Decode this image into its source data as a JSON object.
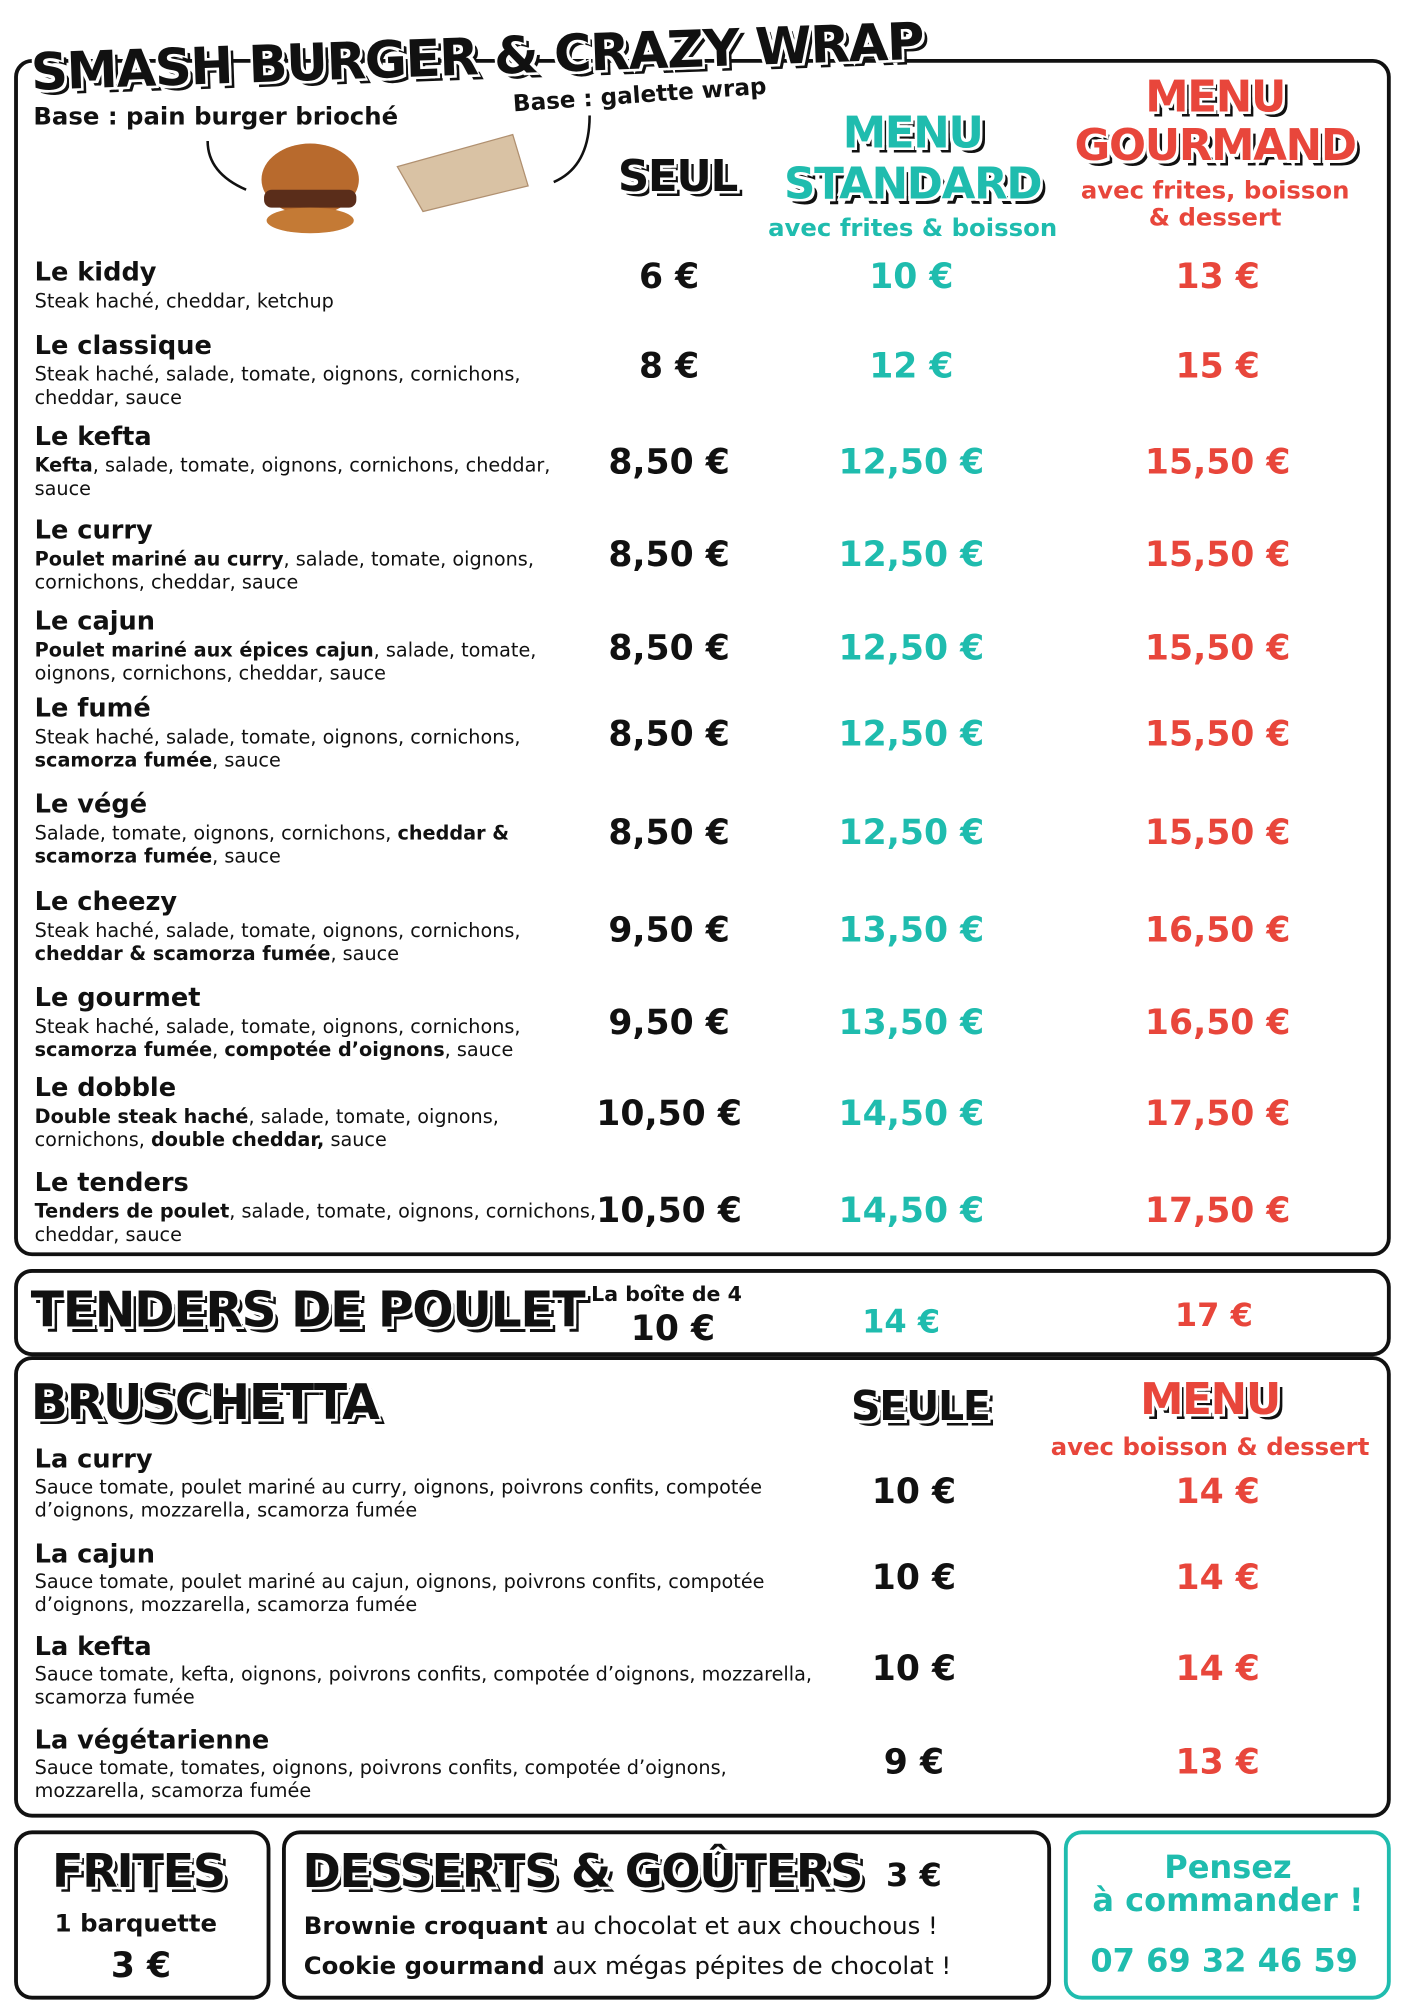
{
  "header": {
    "title": "SMASH BURGER & CRAZY WRAP",
    "base_burger": "Base : pain burger brioché",
    "base_wrap": "Base : galette wrap"
  },
  "columns": {
    "seul": "SEUL",
    "standard": [
      "MENU",
      "STANDARD"
    ],
    "standard_note": "avec frites & boisson",
    "gourmand": [
      "MENU",
      "GOURMAND"
    ],
    "gourmand_note": [
      "avec frites, boisson",
      "& dessert"
    ]
  },
  "burgers": [
    {
      "name": "Le kiddy",
      "description": [
        {
          "text": "Steak haché, cheddar, ketchup",
          "bold": false
        }
      ],
      "seul": "6 €",
      "standard": "10 €",
      "gourmand": "13 €"
    },
    {
      "name": "Le classique",
      "description": [
        {
          "text": "Steak haché, salade, tomate, oignons, cornichons, cheddar, sauce",
          "bold": false
        }
      ],
      "seul": "8 €",
      "standard": "12 €",
      "gourmand": "15 €"
    },
    {
      "name": "Le kefta",
      "description": [
        {
          "text": "Kefta",
          "bold": true
        },
        {
          "text": ", salade, tomate, oignons, cornichons, cheddar, sauce",
          "bold": false
        }
      ],
      "seul": "8,50 €",
      "standard": "12,50 €",
      "gourmand": "15,50 €"
    },
    {
      "name": "Le curry",
      "description": [
        {
          "text": "Poulet mariné au curry",
          "bold": true
        },
        {
          "text": ", salade, tomate, oignons, cornichons, cheddar, sauce",
          "bold": false
        }
      ],
      "seul": "8,50 €",
      "standard": "12,50 €",
      "gourmand": "15,50 €"
    },
    {
      "name": "Le cajun",
      "description": [
        {
          "text": "Poulet mariné aux épices cajun",
          "bold": true
        },
        {
          "text": ", salade, tomate, oignons, cornichons, cheddar, sauce",
          "bold": false
        }
      ],
      "seul": "8,50 €",
      "standard": "12,50 €",
      "gourmand": "15,50 €"
    },
    {
      "name": "Le fumé",
      "description": [
        {
          "text": "Steak haché, salade, tomate, oignons, cornichons, ",
          "bold": false
        },
        {
          "text": "scamorza fumée",
          "bold": true
        },
        {
          "text": ", sauce",
          "bold": false
        }
      ],
      "seul": "8,50 €",
      "standard": "12,50 €",
      "gourmand": "15,50 €"
    },
    {
      "name": "Le végé",
      "description": [
        {
          "text": "Salade, tomate, oignons, cornichons, ",
          "bold": false
        },
        {
          "text": "cheddar & scamorza fumée",
          "bold": true
        },
        {
          "text": ", sauce",
          "bold": false
        }
      ],
      "seul": "8,50 €",
      "standard": "12,50 €",
      "gourmand": "15,50 €"
    },
    {
      "name": "Le cheezy",
      "description": [
        {
          "text": "Steak haché, salade, tomate, oignons, cornichons, ",
          "bold": false
        },
        {
          "text": "cheddar & scamorza fumée",
          "bold": true
        },
        {
          "text": ", sauce",
          "bold": false
        }
      ],
      "seul": "9,50 €",
      "standard": "13,50 €",
      "gourmand": "16,50 €"
    },
    {
      "name": "Le gourmet",
      "description": [
        {
          "text": "Steak haché, salade, tomate, oignons, cornichons, ",
          "bold": false
        },
        {
          "text": "scamorza fumée",
          "bold": true
        },
        {
          "text": ", ",
          "bold": false
        },
        {
          "text": "compotée d’oignons",
          "bold": true
        },
        {
          "text": ", sauce",
          "bold": false
        }
      ],
      "seul": "9,50 €",
      "standard": "13,50 €",
      "gourmand": "16,50 €"
    },
    {
      "name": "Le dobble",
      "description": [
        {
          "text": "Double steak haché",
          "bold": true
        },
        {
          "text": ", salade, tomate, oignons, cornichons, ",
          "bold": false
        },
        {
          "text": "double cheddar,",
          "bold": true
        },
        {
          "text": " sauce",
          "bold": false
        }
      ],
      "seul": "10,50 €",
      "standard": "14,50 €",
      "gourmand": "17,50 €"
    },
    {
      "name": "Le tenders",
      "description": [
        {
          "text": "Tenders de poulet",
          "bold": true
        },
        {
          "text": ", salade, tomate, oignons, cornichons, cheddar, sauce",
          "bold": false
        }
      ],
      "seul": "10,50 €",
      "standard": "14,50 €",
      "gourmand": "17,50 €"
    }
  ],
  "tenders": {
    "title": "TENDERS DE POULET",
    "note": "La boîte de 4",
    "seul": "10 €",
    "standard": "14 €",
    "gourmand": "17 €"
  },
  "bruschetta": {
    "title": "BRUSCHETTA",
    "seule": "SEULE",
    "menu": "MENU",
    "menu_note": "avec boisson & dessert",
    "items": [
      {
        "name": "La curry",
        "description": "Sauce tomate, poulet mariné au curry, oignons, poivrons confits, compotée d’oignons, mozzarella, scamorza fumée",
        "seule": "10 €",
        "menu": "14 €"
      },
      {
        "name": "La cajun",
        "description": "Sauce tomate, poulet mariné au cajun, oignons, poivrons confits, compotée d’oignons, mozzarella, scamorza fumée",
        "seule": "10 €",
        "menu": "14 €"
      },
      {
        "name": "La kefta",
        "description": "Sauce tomate, kefta, oignons, poivrons confits, compotée d’oignons, mozzarella, scamorza fumée",
        "seule": "10 €",
        "menu": "14 €"
      },
      {
        "name": "La végétarienne",
        "description": "Sauce tomate, tomates, oignons, poivrons confits, compotée d’oignons, mozzarella, scamorza fumée",
        "seule": "9 €",
        "menu": "13 €"
      }
    ]
  },
  "frites": {
    "title": "FRITES",
    "note": "1 barquette",
    "price": "3 €"
  },
  "desserts": {
    "title": "DESSERTS & GOÛTERS",
    "price": "3 €",
    "lines": [
      [
        {
          "text": "Brownie croquant",
          "bold": true
        },
        {
          "text": " au chocolat et aux chouchous !",
          "bold": false
        }
      ],
      [
        {
          "text": "Cookie gourmand",
          "bold": true
        },
        {
          "text": " aux mégas pépites de chocolat !",
          "bold": false
        }
      ]
    ]
  },
  "contact": {
    "lines": [
      "Pensez",
      "à commander !"
    ],
    "phone": "07 69 32 46 59"
  }
}
